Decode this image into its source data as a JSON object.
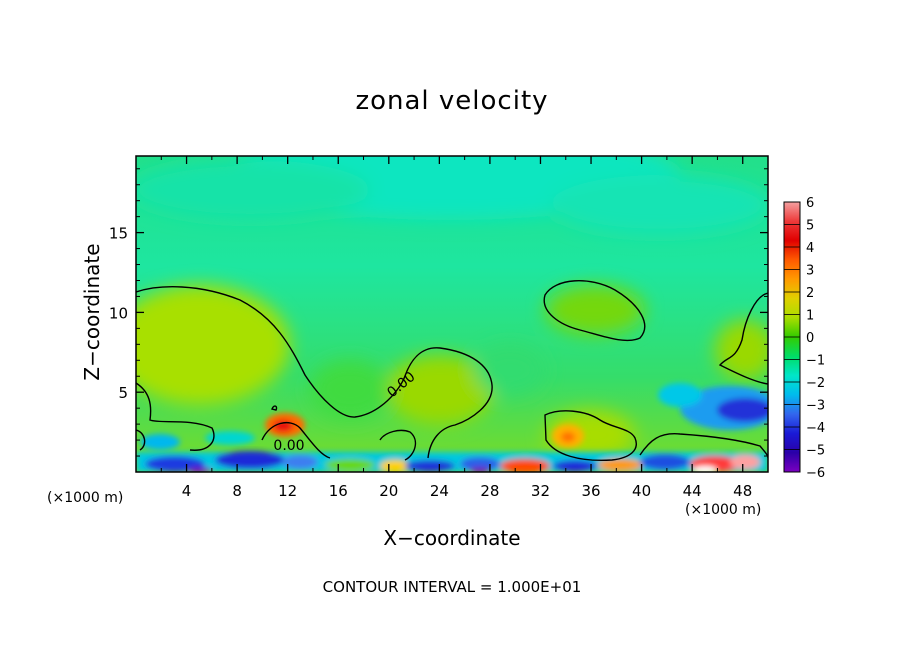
{
  "chart_data": {
    "type": "heatmap",
    "title": "zonal velocity",
    "xlabel": "X−coordinate",
    "ylabel": "Z−coordinate",
    "x_units": "(×1000 m)",
    "xlim": [
      0,
      50
    ],
    "ylim": [
      0,
      19.8
    ],
    "x_ticks": [
      4,
      8,
      12,
      16,
      20,
      24,
      28,
      32,
      36,
      40,
      44,
      48
    ],
    "y_ticks": [
      5,
      10,
      15
    ],
    "colorbar": {
      "range": [
        -6,
        6
      ],
      "labels": [
        "6",
        "5",
        "4",
        "3",
        "2",
        "1",
        "0",
        "−1",
        "−2",
        "−3",
        "−4",
        "−5",
        "−6"
      ],
      "colors": [
        "#f4a0a0",
        "#ee3a3a",
        "#e00000",
        "#ff5a00",
        "#ff9a00",
        "#e0d000",
        "#aadd00",
        "#33cc00",
        "#00dd66",
        "#00e6c8",
        "#00bbee",
        "#3366ee",
        "#1a1ad6",
        "#2a00a8",
        "#7a00c0"
      ],
      "continuous": true
    },
    "contour_interval": "CONTOUR INTERVAL = 1.000E+01",
    "contour_labels": [
      "0.00",
      "0.00"
    ],
    "grid": false,
    "legend": "colorbar-right",
    "features": [
      {
        "region": "upper domain",
        "value_range": [
          -2,
          -1
        ]
      },
      {
        "region": "mid domain",
        "value_range": [
          -1,
          1
        ]
      },
      {
        "region": "near x=12, z=3",
        "value_range": [
          3,
          5
        ]
      },
      {
        "region": "near x=34, z=2.5",
        "value_range": [
          2,
          3
        ]
      },
      {
        "region": "near x=46, z=4",
        "value_range": [
          -5,
          -3
        ]
      },
      {
        "region": "surface layer z<1",
        "value_range": [
          -6,
          6
        ]
      }
    ]
  }
}
